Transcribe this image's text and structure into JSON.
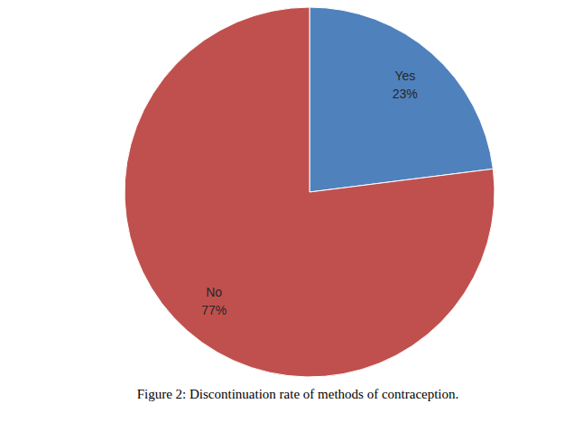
{
  "chart_data": {
    "type": "pie",
    "title": "Figure 2: Discontinuation rate of methods of contraception.",
    "categories": [
      "Yes",
      "No"
    ],
    "values": [
      23,
      77
    ],
    "value_labels": [
      "23%",
      "77%"
    ],
    "colors": [
      "#4f81bd",
      "#c0504d"
    ],
    "data_labels": true
  }
}
